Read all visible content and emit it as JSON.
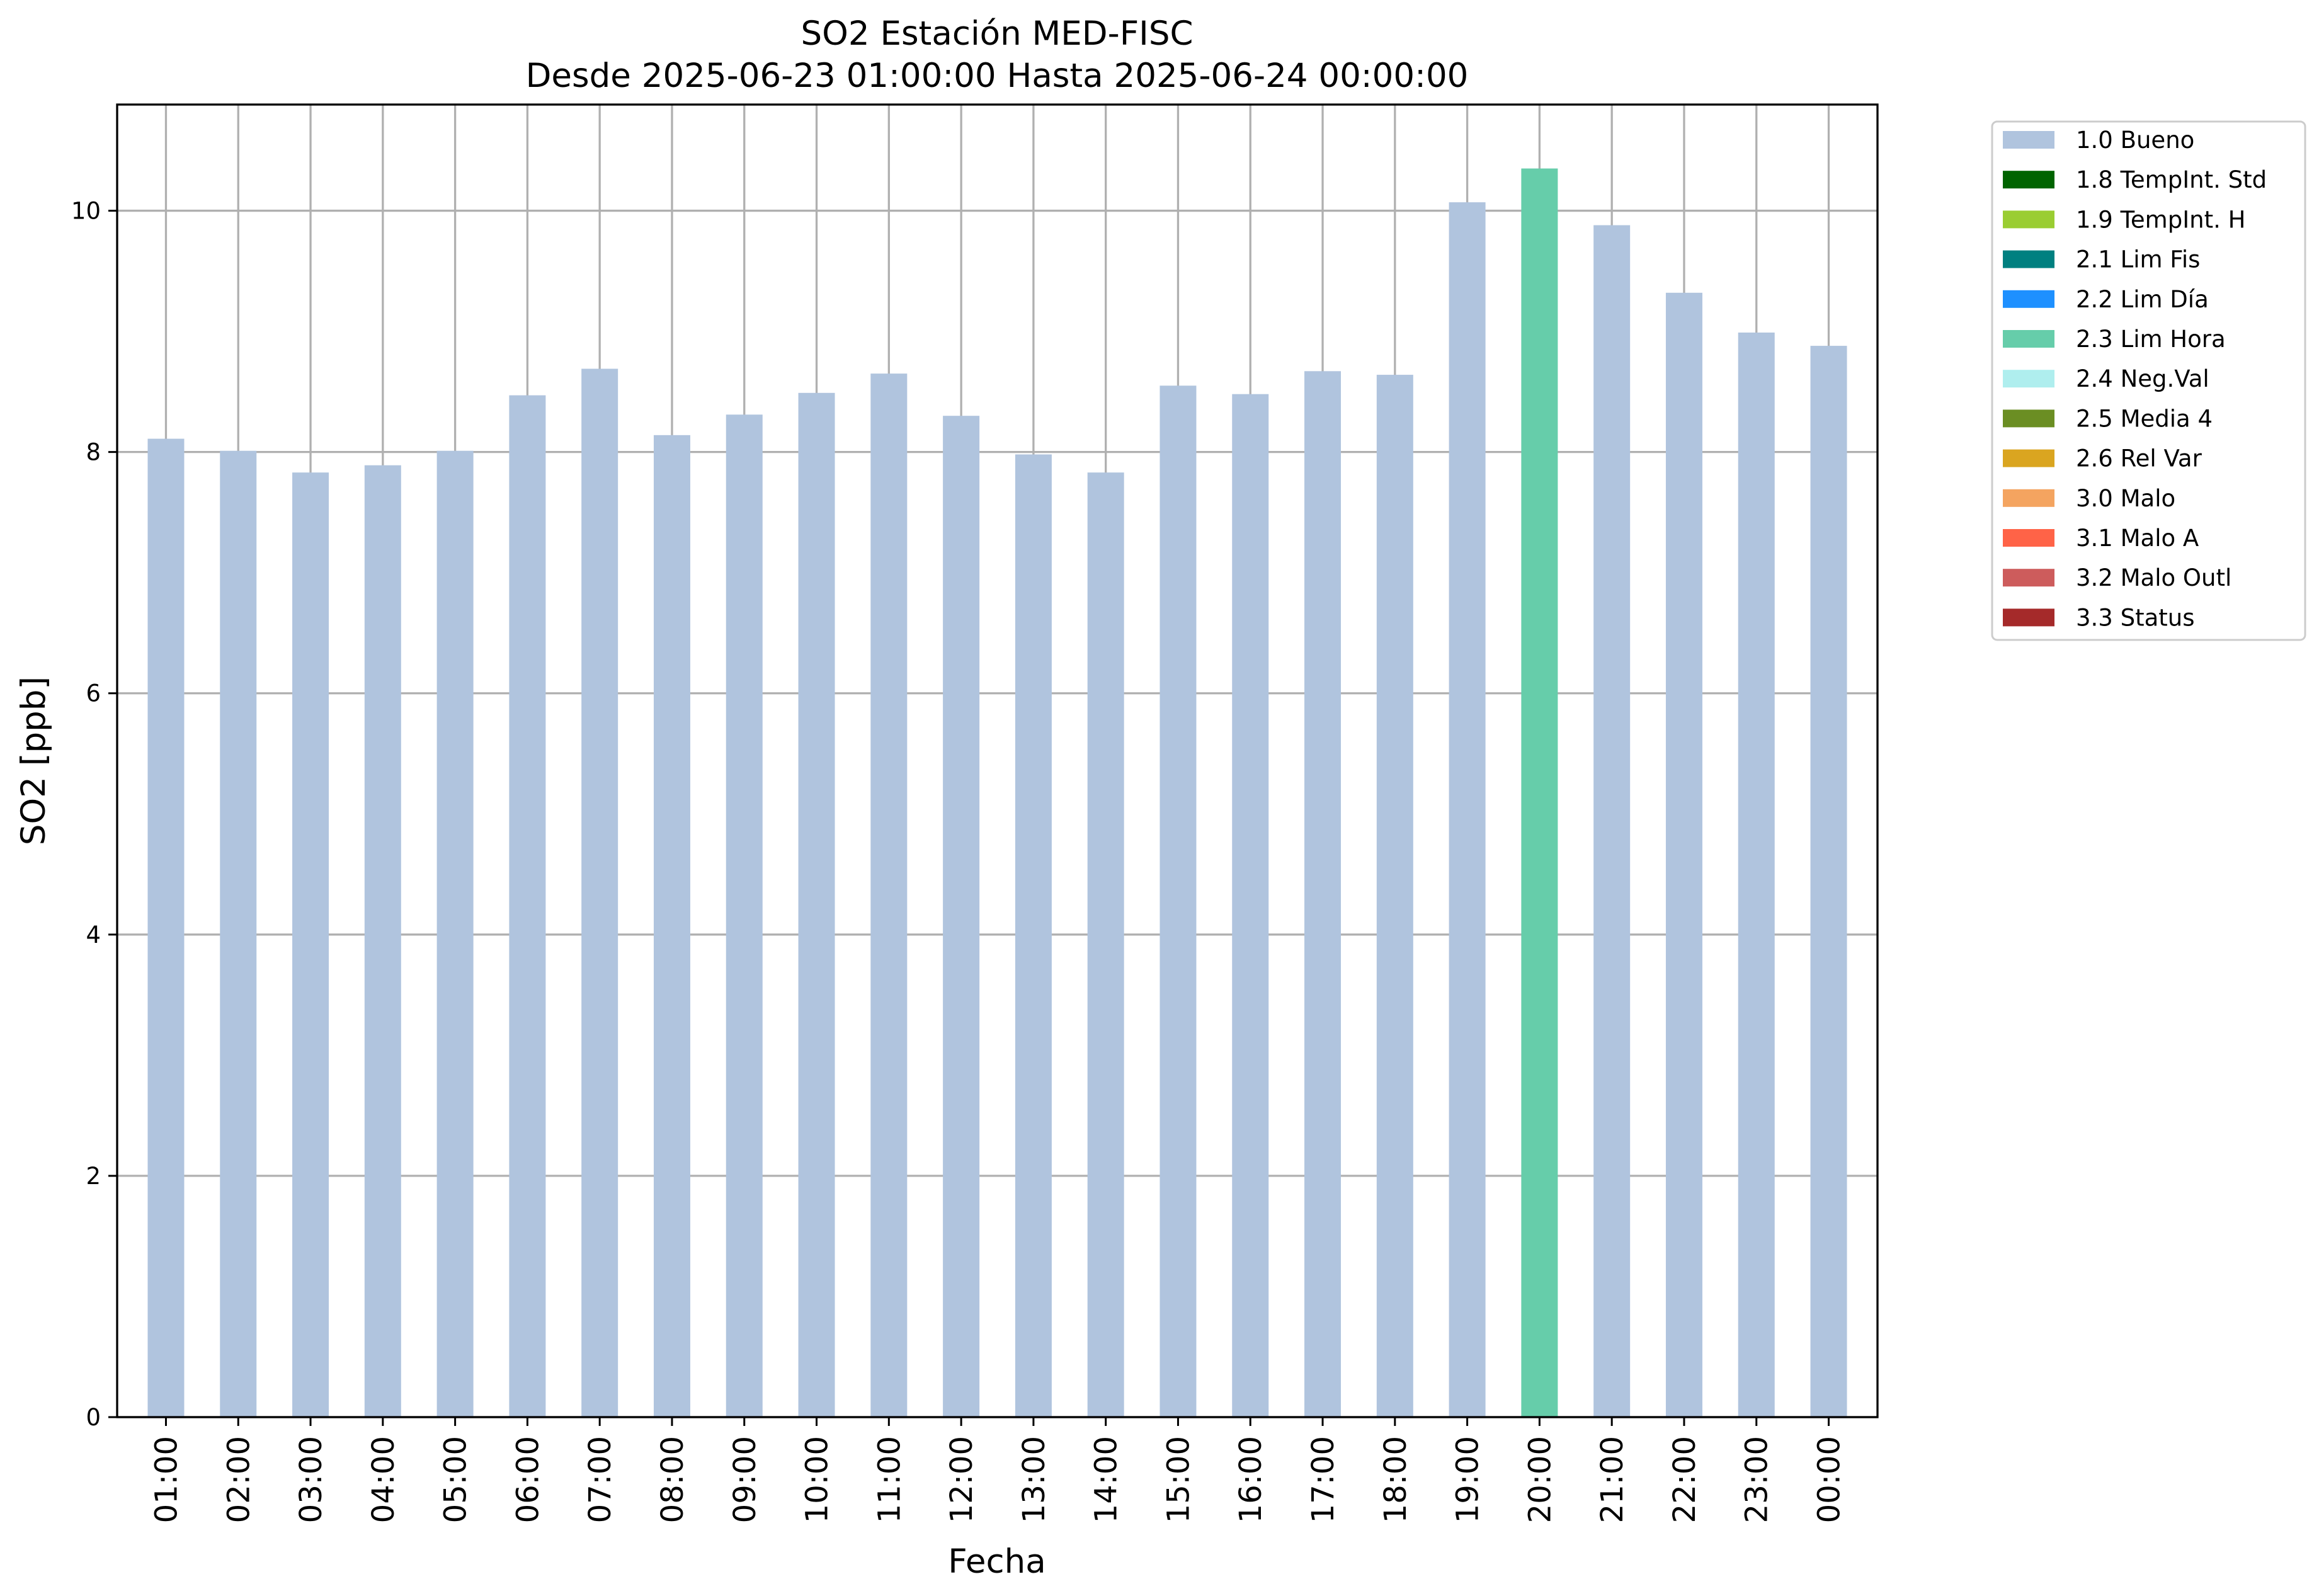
{
  "chart_data": {
    "type": "bar",
    "title": "SO2 Estación MED-FISC",
    "subtitle": "Desde 2025-06-23 01:00:00 Hasta 2025-06-24 00:00:00",
    "xlabel": "Fecha",
    "ylabel": "SO2 [ppb]",
    "ylim": [
      0,
      10.88
    ],
    "yticks": [
      "0",
      "2",
      "4",
      "6",
      "8",
      "10"
    ],
    "grid": true,
    "legend_position": "outside-top-right",
    "categories": [
      "01:00",
      "02:00",
      "03:00",
      "04:00",
      "05:00",
      "06:00",
      "07:00",
      "08:00",
      "09:00",
      "10:00",
      "11:00",
      "12:00",
      "13:00",
      "14:00",
      "15:00",
      "16:00",
      "17:00",
      "18:00",
      "19:00",
      "20:00",
      "21:00",
      "22:00",
      "23:00",
      "00:00"
    ],
    "values": [
      8.11,
      8.01,
      7.83,
      7.89,
      8.01,
      8.47,
      8.69,
      8.14,
      8.31,
      8.49,
      8.65,
      8.3,
      7.98,
      7.83,
      8.55,
      8.48,
      8.67,
      8.64,
      10.07,
      10.35,
      9.88,
      9.32,
      8.99,
      8.88
    ],
    "flags": [
      "1.0 Bueno",
      "1.0 Bueno",
      "1.0 Bueno",
      "1.0 Bueno",
      "1.0 Bueno",
      "1.0 Bueno",
      "1.0 Bueno",
      "1.0 Bueno",
      "1.0 Bueno",
      "1.0 Bueno",
      "1.0 Bueno",
      "1.0 Bueno",
      "1.0 Bueno",
      "1.0 Bueno",
      "1.0 Bueno",
      "1.0 Bueno",
      "1.0 Bueno",
      "1.0 Bueno",
      "1.0 Bueno",
      "2.3 Lim Hora",
      "1.0 Bueno",
      "1.0 Bueno",
      "1.0 Bueno",
      "1.0 Bueno"
    ],
    "legend": [
      {
        "label": "1.0 Bueno",
        "color": "#b0c4de"
      },
      {
        "label": "1.8 TempInt. Std",
        "color": "#006400"
      },
      {
        "label": "1.9 TempInt. H",
        "color": "#9acd32"
      },
      {
        "label": "2.1 Lim Fis",
        "color": "#008080"
      },
      {
        "label": "2.2 Lim Día",
        "color": "#1e90ff"
      },
      {
        "label": "2.3 Lim Hora",
        "color": "#66cdaa"
      },
      {
        "label": "2.4 Neg.Val",
        "color": "#afeeee"
      },
      {
        "label": "2.5 Media 4",
        "color": "#6b8e23"
      },
      {
        "label": "2.6 Rel Var",
        "color": "#daa520"
      },
      {
        "label": "3.0 Malo",
        "color": "#f4a460"
      },
      {
        "label": "3.1 Malo A",
        "color": "#ff6347"
      },
      {
        "label": "3.2 Malo Outl",
        "color": "#cd5c5c"
      },
      {
        "label": "3.3 Status",
        "color": "#a52a2a"
      }
    ]
  }
}
